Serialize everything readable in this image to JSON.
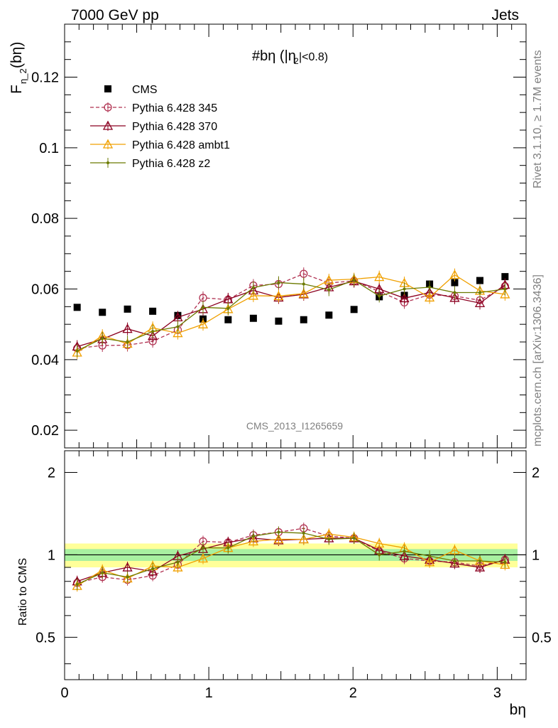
{
  "header": {
    "left": "7000 GeV pp",
    "right": "Jets"
  },
  "annotations": {
    "title": "#bη (|η",
    "title_sub": "2",
    "title_tail": "|<0.8)",
    "watermark": "CMS_2013_I1265659",
    "side_top": "Rivet 3.1.10, ≥ 1.7M events",
    "side_bottom": "mcplots.cern.ch [arXiv:1306.3436]"
  },
  "axes": {
    "ylabel_main": "F",
    "ylabel_main_sub": "η_2",
    "ylabel_main_tail": "(bη)",
    "ylabel_ratio": "Ratio to CMS",
    "xlabel": "bη"
  },
  "legend": [
    {
      "label": "CMS",
      "color": "#000000",
      "marker": "square"
    },
    {
      "label": "Pythia 6.428 345",
      "color": "#b03050",
      "marker": "circle-open",
      "dashed": true
    },
    {
      "label": "Pythia 6.428 370",
      "color": "#8b0020",
      "marker": "triangle-open"
    },
    {
      "label": "Pythia 6.428 ambt1",
      "color": "#f0a000",
      "marker": "triangle-open"
    },
    {
      "label": "Pythia 6.428 z2",
      "color": "#6b7a00",
      "marker": "dot"
    }
  ],
  "chart_data": [
    {
      "type": "line",
      "panel": "main",
      "xlim": [
        0,
        3.2
      ],
      "ylim": [
        0.015,
        0.135
      ],
      "yticks": [
        0.02,
        0.04,
        0.06,
        0.08,
        0.1,
        0.12
      ],
      "ytick_labels": [
        "0.02",
        "0.04",
        "0.06",
        "0.08",
        "0.1",
        "0.12"
      ],
      "x": [
        0.087,
        0.262,
        0.436,
        0.611,
        0.785,
        0.96,
        1.134,
        1.309,
        1.484,
        1.658,
        1.833,
        2.007,
        2.182,
        2.356,
        2.531,
        2.705,
        2.88,
        3.054
      ],
      "series": [
        {
          "name": "CMS",
          "values": [
            0.0548,
            0.0534,
            0.0543,
            0.0537,
            0.0525,
            0.0515,
            0.0513,
            0.0517,
            0.0509,
            0.0513,
            0.0526,
            0.0542,
            0.0578,
            0.0582,
            0.0614,
            0.0618,
            0.0624,
            0.0635
          ]
        },
        {
          "name": "Pythia 6.428 345",
          "values": [
            0.0432,
            0.044,
            0.0441,
            0.0452,
            0.0484,
            0.0575,
            0.057,
            0.061,
            0.0614,
            0.0643,
            0.0617,
            0.0623,
            0.0593,
            0.0562,
            0.0584,
            0.058,
            0.0568,
            0.0608
          ]
        },
        {
          "name": "Pythia 6.428 370",
          "values": [
            0.0437,
            0.0458,
            0.0487,
            0.0467,
            0.052,
            0.0543,
            0.0571,
            0.0596,
            0.0576,
            0.0585,
            0.0605,
            0.0622,
            0.06,
            0.0574,
            0.059,
            0.0575,
            0.056,
            0.0612
          ]
        },
        {
          "name": "Pythia 6.428 ambt1",
          "values": [
            0.042,
            0.0468,
            0.0445,
            0.049,
            0.0475,
            0.05,
            0.0543,
            0.0581,
            0.058,
            0.0587,
            0.0625,
            0.0628,
            0.0634,
            0.0617,
            0.0576,
            0.064,
            0.0595,
            0.0585
          ]
        },
        {
          "name": "Pythia 6.428 z2",
          "values": [
            0.0425,
            0.046,
            0.045,
            0.048,
            0.0493,
            0.0548,
            0.0545,
            0.0604,
            0.0618,
            0.0614,
            0.0598,
            0.0625,
            0.058,
            0.06,
            0.0605,
            0.059,
            0.059,
            0.06
          ]
        }
      ]
    },
    {
      "type": "line",
      "panel": "ratio",
      "ylabel": "Ratio to CMS",
      "xlabel": "bη",
      "xlim": [
        0,
        3.2
      ],
      "ylim": [
        0.35,
        2.4
      ],
      "log_y": true,
      "yticks": [
        0.5,
        1,
        2
      ],
      "ytick_labels": [
        "0.5",
        "1",
        "2"
      ],
      "xticks": [
        0,
        1,
        2,
        3
      ],
      "xtick_labels": [
        "0",
        "1",
        "2",
        "3"
      ],
      "band_inner": 0.05,
      "band_outer": 0.1,
      "x": [
        0.087,
        0.262,
        0.436,
        0.611,
        0.785,
        0.96,
        1.134,
        1.309,
        1.484,
        1.658,
        1.833,
        2.007,
        2.182,
        2.356,
        2.531,
        2.705,
        2.88,
        3.054
      ],
      "series": [
        {
          "name": "Pythia 6.428 345",
          "values": [
            0.79,
            0.83,
            0.81,
            0.84,
            0.92,
            1.12,
            1.11,
            1.18,
            1.21,
            1.25,
            1.17,
            1.15,
            1.03,
            0.97,
            0.95,
            0.94,
            0.91,
            0.96
          ]
        },
        {
          "name": "Pythia 6.428 370",
          "values": [
            0.8,
            0.86,
            0.9,
            0.87,
            0.99,
            1.05,
            1.11,
            1.15,
            1.13,
            1.14,
            1.15,
            1.15,
            1.04,
            0.99,
            0.96,
            0.93,
            0.9,
            0.96
          ]
        },
        {
          "name": "Pythia 6.428 ambt1",
          "values": [
            0.77,
            0.88,
            0.82,
            0.91,
            0.9,
            0.97,
            1.06,
            1.12,
            1.14,
            1.14,
            1.19,
            1.16,
            1.1,
            1.06,
            0.94,
            1.04,
            0.95,
            0.92
          ]
        },
        {
          "name": "Pythia 6.428 z2",
          "values": [
            0.78,
            0.86,
            0.83,
            0.89,
            0.94,
            1.06,
            1.06,
            1.17,
            1.21,
            1.2,
            1.14,
            1.15,
            1.0,
            1.03,
            0.99,
            0.95,
            0.95,
            0.94
          ]
        }
      ]
    }
  ]
}
